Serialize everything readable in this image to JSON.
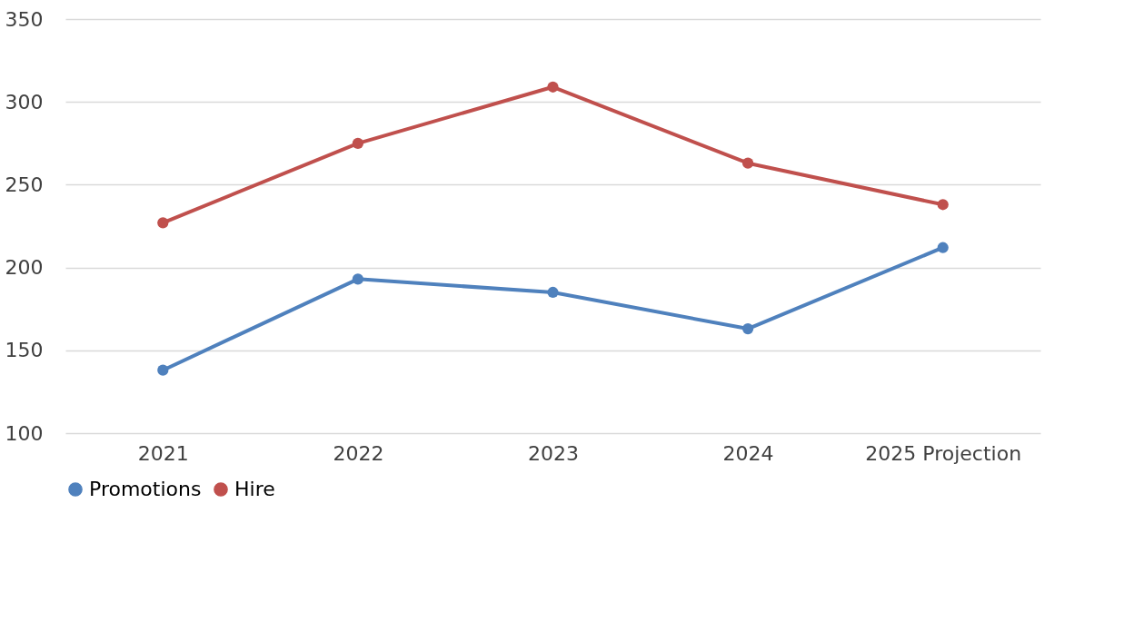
{
  "chart_data": {
    "type": "line",
    "categories": [
      "2021",
      "2022",
      "2023",
      "2024",
      "2025 Projection"
    ],
    "series": [
      {
        "name": "Promotions",
        "color": "#4f81bd",
        "values": [
          138,
          193,
          185,
          163,
          212
        ]
      },
      {
        "name": "Hire",
        "color": "#c0504d",
        "values": [
          227,
          275,
          309,
          263,
          238
        ]
      }
    ],
    "ylim": [
      100,
      350
    ],
    "yticks": [
      100,
      150,
      200,
      250,
      300,
      350
    ],
    "grid": "y",
    "legend": "bottom",
    "marker": "circle",
    "line_style": "solid"
  }
}
